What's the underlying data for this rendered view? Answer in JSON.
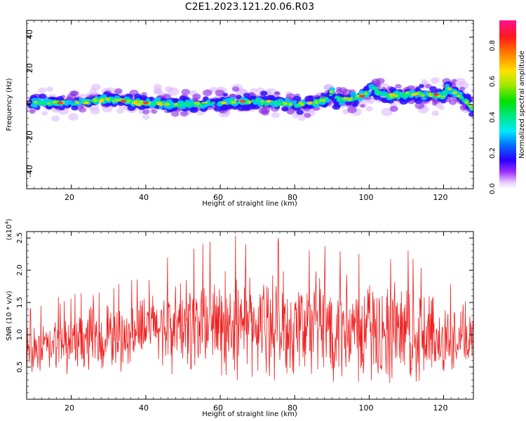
{
  "figure": {
    "title": "C2E1.2023.121.20.06.R03"
  },
  "chart_data": [
    {
      "type": "heatmap",
      "xlabel": "Height of straight line (km)",
      "ylabel": "Frequency (Hz)",
      "xlim": [
        8,
        128
      ],
      "ylim": [
        -50,
        50
      ],
      "xticks": [
        "20",
        "40",
        "60",
        "80",
        "100",
        "120"
      ],
      "yticks": [
        "40",
        "20",
        "0",
        "-20",
        "-40"
      ],
      "ridge": {
        "height_km": [
          9,
          20,
          30,
          40,
          50,
          60,
          70,
          80,
          85,
          89,
          90,
          91,
          95,
          100,
          101,
          102,
          105,
          110,
          115,
          120,
          121,
          125,
          128
        ],
        "frequency_hz": [
          1,
          1,
          3,
          1,
          0,
          1,
          2,
          0,
          1,
          3,
          8,
          3,
          3,
          7,
          12,
          8,
          5,
          6,
          6,
          5,
          10,
          4,
          -3
        ]
      },
      "colorbar": {
        "label": "Normalized spectral amplitude",
        "ticks": [
          "0.0",
          "0.2",
          "0.4",
          "0.6",
          "0.8"
        ],
        "range": [
          0,
          0.95
        ]
      }
    },
    {
      "type": "line",
      "xlabel": "Height of straight line (km)",
      "ylabel": "SNR (10 * v/v)",
      "y_multiplier": "(x10",
      "y_multiplier_exp": "4",
      "y_multiplier_close": ")",
      "xlim": [
        8,
        128
      ],
      "ylim": [
        0,
        2.6
      ],
      "xticks": [
        "20",
        "40",
        "60",
        "80",
        "100",
        "120"
      ],
      "yticks": [
        "0.5",
        "1.0",
        "1.5",
        "2.0",
        "2.5"
      ],
      "series": [
        {
          "color": "#ee2222",
          "points": 1000,
          "baseline": {
            "height_km": [
              8,
              20,
              30,
              40,
              50,
              60,
              70,
              80,
              90,
              100,
              110,
              120,
              128
            ],
            "snr": [
              0.75,
              0.85,
              0.95,
              1.1,
              1.15,
              1.15,
              1.15,
              1.1,
              1.15,
              1.05,
              1.0,
              0.95,
              0.95
            ]
          },
          "amplitude": {
            "height_km": [
              8,
              20,
              30,
              40,
              50,
              60,
              70,
              80,
              90,
              100,
              110,
              120,
              128
            ],
            "snr": [
              0.45,
              0.55,
              0.6,
              0.55,
              0.85,
              0.95,
              0.95,
              0.95,
              0.95,
              0.9,
              0.9,
              0.75,
              0.5
            ]
          }
        }
      ]
    }
  ]
}
